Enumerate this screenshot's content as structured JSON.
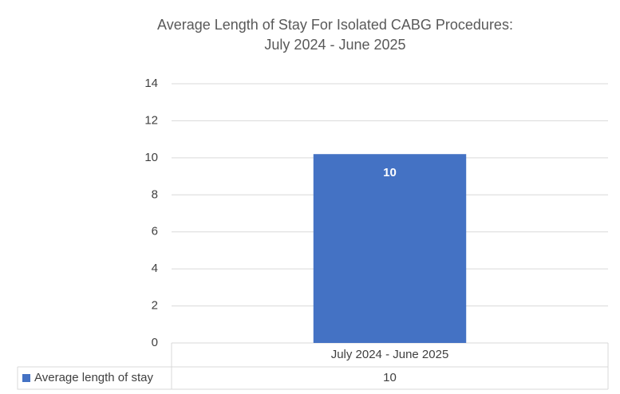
{
  "chart_data": {
    "type": "bar",
    "title": "Average Length of Stay For Isolated CABG Procedures:",
    "subtitle": "July 2024 - June 2025",
    "categories": [
      "July 2024 - June 2025"
    ],
    "series": [
      {
        "name": "Average length of stay",
        "color": "#4472c4",
        "values": [
          10.2
        ],
        "value_labels": [
          "10"
        ]
      }
    ],
    "ylim": [
      0,
      14
    ],
    "yticks": [
      0,
      2,
      4,
      6,
      8,
      10,
      12,
      14
    ],
    "grid": true,
    "legend": "data-table"
  }
}
